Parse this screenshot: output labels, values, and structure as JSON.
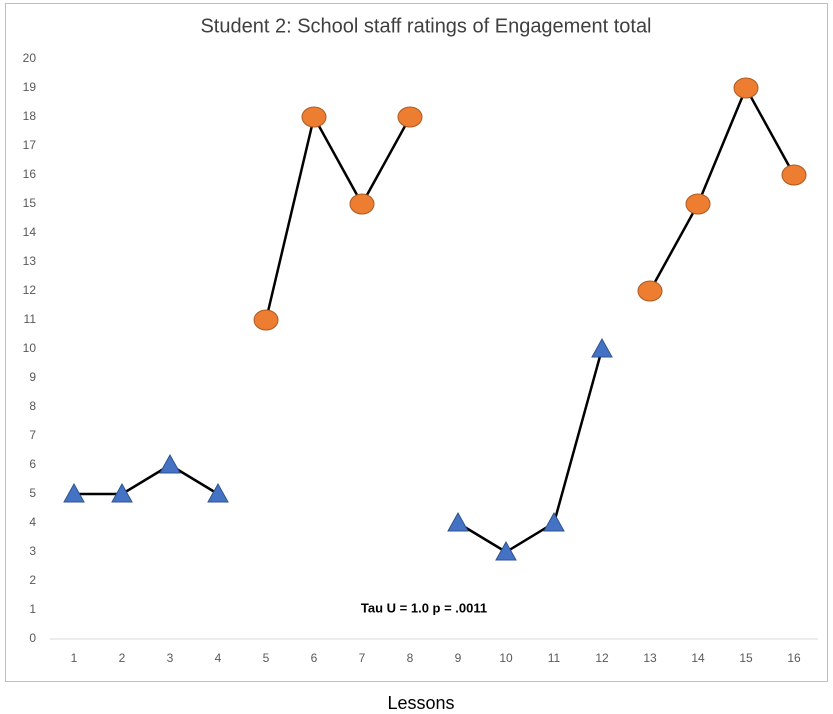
{
  "chart_data": {
    "type": "line",
    "title": "Student 2: School staff ratings of Engagement total",
    "x_label": "Lessons",
    "annotation": "Tau U = 1.0 p = .0011",
    "categories": [
      "1",
      "2",
      "3",
      "4",
      "5",
      "6",
      "7",
      "8",
      "9",
      "10",
      "11",
      "12",
      "13",
      "14",
      "15",
      "16"
    ],
    "series": [
      {
        "color": "#4472c4",
        "marker": "triangle",
        "values": [
          5,
          5,
          6,
          5,
          null,
          null,
          null,
          null,
          4,
          3,
          4,
          10,
          null,
          null,
          null,
          null
        ]
      },
      {
        "color": "#ed7d31",
        "marker": "circle",
        "values": [
          null,
          null,
          null,
          null,
          11,
          18,
          15,
          18,
          null,
          null,
          null,
          null,
          12,
          15,
          19,
          16
        ]
      }
    ],
    "line_color": "#000000",
    "ylim": [
      0,
      20
    ],
    "yticks": [
      0,
      1,
      2,
      3,
      4,
      5,
      6,
      7,
      8,
      9,
      10,
      11,
      12,
      13,
      14,
      15,
      16,
      17,
      18,
      19,
      20
    ],
    "grid": false
  }
}
